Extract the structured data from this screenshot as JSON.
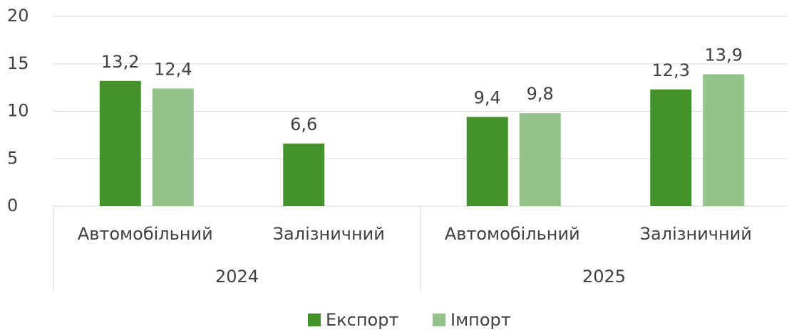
{
  "chart_data": {
    "type": "bar",
    "groups": [
      {
        "name": "2024",
        "categories": [
          "Автомобільний",
          "Залізничний"
        ]
      },
      {
        "name": "2025",
        "categories": [
          "Автомобільний",
          "Залізничний"
        ]
      }
    ],
    "series": [
      {
        "name": "Експорт",
        "color": "#43922a",
        "values": [
          13.2,
          6.6,
          9.4,
          12.3
        ],
        "value_labels": [
          "13,2",
          "6,6",
          "9,4",
          "12,3"
        ]
      },
      {
        "name": "Імпорт",
        "color": "#93c38a",
        "values": [
          12.4,
          null,
          9.8,
          13.9
        ],
        "value_labels": [
          "12,4",
          null,
          "9,8",
          "13,9"
        ]
      }
    ],
    "ylim": [
      0,
      20
    ],
    "yticks": [
      0,
      5,
      10,
      15,
      20
    ],
    "grid": true,
    "legend": "bottom"
  }
}
